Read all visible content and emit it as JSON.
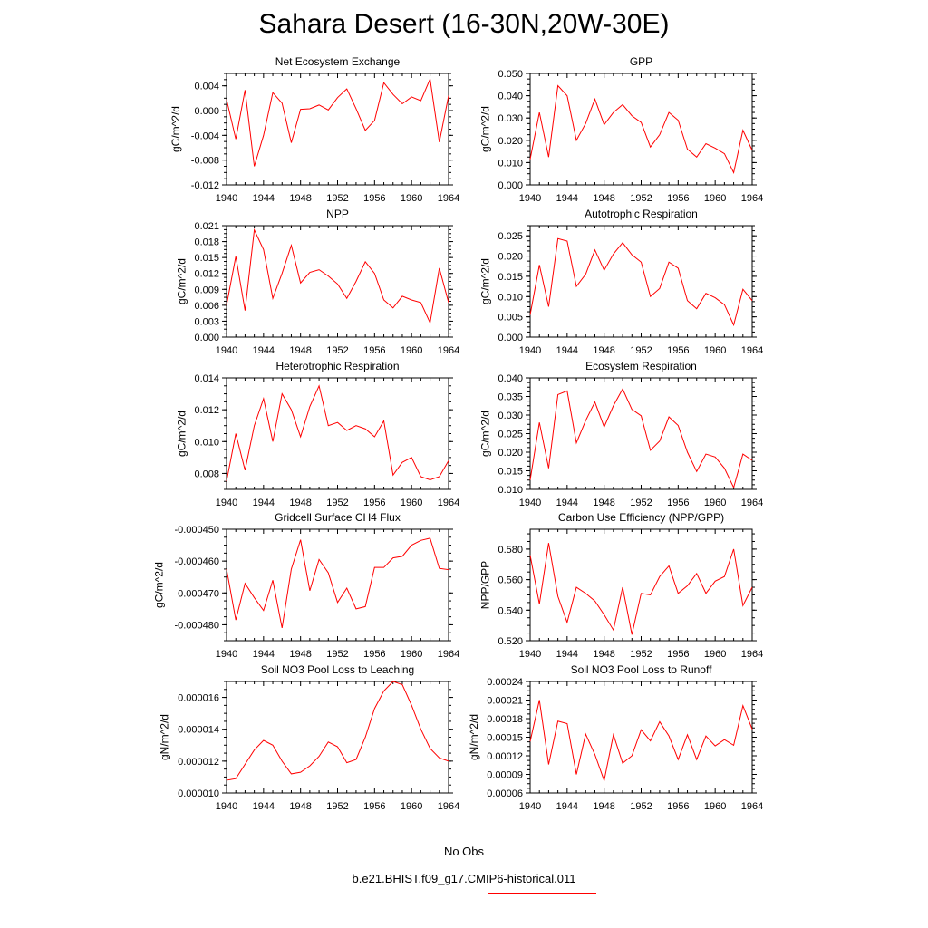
{
  "title": "Sahara Desert (16-30N,20W-30E)",
  "legend": [
    {
      "label": "No Obs",
      "color": "#0000ff",
      "dash": true
    },
    {
      "label": "b.e21.BHIST.f09_g17.CMIP6-historical.011",
      "color": "#ff0000",
      "dash": false
    }
  ],
  "chart_data": [
    {
      "type": "line",
      "title": "Net Ecosystem Exchange",
      "ylabel": "gC/m^2/d",
      "xlim": [
        1940,
        1964
      ],
      "ylim": [
        -0.012,
        0.006
      ],
      "xticks": [
        "1940",
        "1944",
        "1948",
        "1952",
        "1956",
        "1960",
        "1964"
      ],
      "yticks": [
        "-0.012",
        "-0.008",
        "-0.004",
        "0.000",
        "0.004"
      ],
      "series": [
        {
          "x": [
            1940,
            1941,
            1942,
            1943,
            1944,
            1945,
            1946,
            1947,
            1948,
            1949,
            1950,
            1951,
            1952,
            1953,
            1954,
            1955,
            1956,
            1957,
            1958,
            1959,
            1960,
            1961,
            1962,
            1963,
            1964
          ],
          "values": [
            0.0018,
            -0.0046,
            0.0033,
            -0.009,
            -0.004,
            0.0029,
            0.0012,
            -0.0052,
            0.0002,
            0.0003,
            0.0009,
            0.0001,
            0.0021,
            0.0035,
            0.0003,
            -0.0032,
            -0.0016,
            0.0045,
            0.0026,
            0.0011,
            0.0022,
            0.0016,
            0.0051,
            -0.0051,
            0.0024
          ],
          "color": "#ff0000"
        }
      ]
    },
    {
      "type": "line",
      "title": "GPP",
      "ylabel": "gC/m^2/d",
      "xlim": [
        1940,
        1964
      ],
      "ylim": [
        0,
        0.05
      ],
      "xticks": [
        "1940",
        "1944",
        "1948",
        "1952",
        "1956",
        "1960",
        "1964"
      ],
      "yticks": [
        "0.000",
        "0.010",
        "0.020",
        "0.030",
        "0.040",
        "0.050"
      ],
      "series": [
        {
          "x": [
            1940,
            1941,
            1942,
            1943,
            1944,
            1945,
            1946,
            1947,
            1948,
            1949,
            1950,
            1951,
            1952,
            1953,
            1954,
            1955,
            1956,
            1957,
            1958,
            1959,
            1960,
            1961,
            1962,
            1963,
            1964
          ],
          "values": [
            0.0115,
            0.0325,
            0.0125,
            0.0445,
            0.04,
            0.02,
            0.0275,
            0.0385,
            0.027,
            0.0325,
            0.036,
            0.031,
            0.028,
            0.017,
            0.0225,
            0.0325,
            0.029,
            0.016,
            0.0125,
            0.0185,
            0.0165,
            0.014,
            0.0055,
            0.0245,
            0.0155
          ],
          "color": "#ff0000"
        }
      ]
    },
    {
      "type": "line",
      "title": "NPP",
      "ylabel": "gC/m^2/d",
      "xlim": [
        1940,
        1964
      ],
      "ylim": [
        0,
        0.021
      ],
      "xticks": [
        "1940",
        "1944",
        "1948",
        "1952",
        "1956",
        "1960",
        "1964"
      ],
      "yticks": [
        "0.000",
        "0.003",
        "0.006",
        "0.009",
        "0.012",
        "0.015",
        "0.018",
        "0.021"
      ],
      "series": [
        {
          "x": [
            1940,
            1941,
            1942,
            1943,
            1944,
            1945,
            1946,
            1947,
            1948,
            1949,
            1950,
            1951,
            1952,
            1953,
            1954,
            1955,
            1956,
            1957,
            1958,
            1959,
            1960,
            1961,
            1962,
            1963,
            1964
          ],
          "values": [
            0.006,
            0.0152,
            0.005,
            0.0202,
            0.0165,
            0.0073,
            0.012,
            0.0173,
            0.0102,
            0.0122,
            0.0127,
            0.0115,
            0.01,
            0.0073,
            0.0105,
            0.0142,
            0.012,
            0.007,
            0.0055,
            0.0077,
            0.007,
            0.0065,
            0.0027,
            0.013,
            0.0065
          ],
          "color": "#ff0000"
        }
      ]
    },
    {
      "type": "line",
      "title": "Autotrophic Respiration",
      "ylabel": "gC/m^2/d",
      "xlim": [
        1940,
        1964
      ],
      "ylim": [
        0,
        0.0275
      ],
      "xticks": [
        "1940",
        "1944",
        "1948",
        "1952",
        "1956",
        "1960",
        "1964"
      ],
      "yticks": [
        "0.000",
        "0.005",
        "0.010",
        "0.015",
        "0.020",
        "0.025"
      ],
      "series": [
        {
          "x": [
            1940,
            1941,
            1942,
            1943,
            1944,
            1945,
            1946,
            1947,
            1948,
            1949,
            1950,
            1951,
            1952,
            1953,
            1954,
            1955,
            1956,
            1957,
            1958,
            1959,
            1960,
            1961,
            1962,
            1963,
            1964
          ],
          "values": [
            0.0055,
            0.0178,
            0.0075,
            0.0243,
            0.0237,
            0.0125,
            0.0155,
            0.0215,
            0.0165,
            0.0205,
            0.0233,
            0.0203,
            0.0185,
            0.01,
            0.012,
            0.0185,
            0.017,
            0.009,
            0.007,
            0.0108,
            0.0097,
            0.008,
            0.003,
            0.0118,
            0.009
          ],
          "color": "#ff0000"
        }
      ]
    },
    {
      "type": "line",
      "title": "Heterotrophic Respiration",
      "ylabel": "gC/m^2/d",
      "xlim": [
        1940,
        1964
      ],
      "ylim": [
        0.007,
        0.014
      ],
      "xticks": [
        "1940",
        "1944",
        "1948",
        "1952",
        "1956",
        "1960",
        "1964"
      ],
      "yticks": [
        "0.008",
        "0.010",
        "0.012",
        "0.014"
      ],
      "series": [
        {
          "x": [
            1940,
            1941,
            1942,
            1943,
            1944,
            1945,
            1946,
            1947,
            1948,
            1949,
            1950,
            1951,
            1952,
            1953,
            1954,
            1955,
            1956,
            1957,
            1958,
            1959,
            1960,
            1961,
            1962,
            1963,
            1964
          ],
          "values": [
            0.0075,
            0.0105,
            0.0082,
            0.011,
            0.0127,
            0.01,
            0.013,
            0.012,
            0.0103,
            0.0122,
            0.0135,
            0.011,
            0.0112,
            0.0107,
            0.011,
            0.0108,
            0.0103,
            0.0113,
            0.0079,
            0.0087,
            0.009,
            0.0078,
            0.0076,
            0.0078,
            0.0088
          ],
          "color": "#ff0000"
        }
      ]
    },
    {
      "type": "line",
      "title": "Ecosystem Respiration",
      "ylabel": "gC/m^2/d",
      "xlim": [
        1940,
        1964
      ],
      "ylim": [
        0.01,
        0.04
      ],
      "xticks": [
        "1940",
        "1944",
        "1948",
        "1952",
        "1956",
        "1960",
        "1964"
      ],
      "yticks": [
        "0.010",
        "0.015",
        "0.020",
        "0.025",
        "0.030",
        "0.035",
        "0.040"
      ],
      "series": [
        {
          "x": [
            1940,
            1941,
            1942,
            1943,
            1944,
            1945,
            1946,
            1947,
            1948,
            1949,
            1950,
            1951,
            1952,
            1953,
            1954,
            1955,
            1956,
            1957,
            1958,
            1959,
            1960,
            1961,
            1962,
            1963,
            1964
          ],
          "values": [
            0.0125,
            0.028,
            0.0157,
            0.0355,
            0.0365,
            0.0225,
            0.0285,
            0.0335,
            0.0268,
            0.0325,
            0.037,
            0.0315,
            0.0298,
            0.0205,
            0.023,
            0.0295,
            0.0272,
            0.02,
            0.0148,
            0.0195,
            0.0187,
            0.0157,
            0.0105,
            0.0195,
            0.0178
          ],
          "color": "#ff0000"
        }
      ]
    },
    {
      "type": "line",
      "title": "Gridcell Surface CH4 Flux",
      "ylabel": "gC/m^2/d",
      "xlim": [
        1940,
        1964
      ],
      "ylim": [
        -0.000485,
        -0.00045
      ],
      "xticks": [
        "1940",
        "1944",
        "1948",
        "1952",
        "1956",
        "1960",
        "1964"
      ],
      "yticks": [
        "-0.000480",
        "-0.000470",
        "-0.000460",
        "-0.000450"
      ],
      "series": [
        {
          "x": [
            1940,
            1941,
            1942,
            1943,
            1944,
            1945,
            1946,
            1947,
            1948,
            1949,
            1950,
            1951,
            1952,
            1953,
            1954,
            1955,
            1956,
            1957,
            1958,
            1959,
            1960,
            1961,
            1962,
            1963,
            1964
          ],
          "values": [
            -0.0004625,
            -0.0004785,
            -0.000467,
            -0.0004715,
            -0.0004755,
            -0.000466,
            -0.000481,
            -0.0004625,
            -0.0004533,
            -0.0004693,
            -0.0004595,
            -0.0004637,
            -0.000473,
            -0.0004685,
            -0.000475,
            -0.0004743,
            -0.000462,
            -0.000462,
            -0.000459,
            -0.0004585,
            -0.000455,
            -0.0004535,
            -0.0004528,
            -0.0004623,
            -0.0004627
          ],
          "color": "#ff0000"
        }
      ]
    },
    {
      "type": "line",
      "title": "Carbon Use Efficiency (NPP/GPP)",
      "ylabel": "NPP/GPP",
      "xlim": [
        1940,
        1964
      ],
      "ylim": [
        0.52,
        0.593
      ],
      "xticks": [
        "1940",
        "1944",
        "1948",
        "1952",
        "1956",
        "1960",
        "1964"
      ],
      "yticks": [
        "0.520",
        "0.540",
        "0.560",
        "0.580"
      ],
      "series": [
        {
          "x": [
            1940,
            1941,
            1942,
            1943,
            1944,
            1945,
            1946,
            1947,
            1948,
            1949,
            1950,
            1951,
            1952,
            1953,
            1954,
            1955,
            1956,
            1957,
            1958,
            1959,
            1960,
            1961,
            1962,
            1963,
            1964
          ],
          "values": [
            0.576,
            0.544,
            0.584,
            0.549,
            0.532,
            0.555,
            0.551,
            0.546,
            0.537,
            0.527,
            0.555,
            0.524,
            0.551,
            0.55,
            0.562,
            0.569,
            0.551,
            0.556,
            0.564,
            0.551,
            0.559,
            0.562,
            0.58,
            0.543,
            0.555
          ],
          "color": "#ff0000"
        }
      ]
    },
    {
      "type": "line",
      "title": "Soil NO3 Pool Loss to Leaching",
      "ylabel": "gN/m^2/d",
      "xlim": [
        1940,
        1964
      ],
      "ylim": [
        1e-05,
        1.7e-05
      ],
      "xticks": [
        "1940",
        "1944",
        "1948",
        "1952",
        "1956",
        "1960",
        "1964"
      ],
      "yticks": [
        "0.000010",
        "0.000012",
        "0.000014",
        "0.000016"
      ],
      "series": [
        {
          "x": [
            1940,
            1941,
            1942,
            1943,
            1944,
            1945,
            1946,
            1947,
            1948,
            1949,
            1950,
            1951,
            1952,
            1953,
            1954,
            1955,
            1956,
            1957,
            1958,
            1959,
            1960,
            1961,
            1962,
            1963,
            1964
          ],
          "values": [
            1.08e-05,
            1.09e-05,
            1.18e-05,
            1.27e-05,
            1.33e-05,
            1.3e-05,
            1.2e-05,
            1.12e-05,
            1.13e-05,
            1.17e-05,
            1.23e-05,
            1.32e-05,
            1.29e-05,
            1.19e-05,
            1.21e-05,
            1.35e-05,
            1.53e-05,
            1.64e-05,
            1.7e-05,
            1.68e-05,
            1.55e-05,
            1.4e-05,
            1.28e-05,
            1.22e-05,
            1.2e-05
          ],
          "color": "#ff0000"
        }
      ]
    },
    {
      "type": "line",
      "title": "Soil NO3 Pool Loss to Runoff",
      "ylabel": "gN/m^2/d",
      "xlim": [
        1940,
        1964
      ],
      "ylim": [
        6e-05,
        0.00024
      ],
      "xticks": [
        "1940",
        "1944",
        "1948",
        "1952",
        "1956",
        "1960",
        "1964"
      ],
      "yticks": [
        "0.00006",
        "0.00009",
        "0.00012",
        "0.00015",
        "0.00018",
        "0.00021",
        "0.00024"
      ],
      "series": [
        {
          "x": [
            1940,
            1941,
            1942,
            1943,
            1944,
            1945,
            1946,
            1947,
            1948,
            1949,
            1950,
            1951,
            1952,
            1953,
            1954,
            1955,
            1956,
            1957,
            1958,
            1959,
            1960,
            1961,
            1962,
            1963,
            1964
          ],
          "values": [
            0.000143,
            0.00021,
            0.000106,
            0.000176,
            0.000172,
            9e-05,
            0.000155,
            0.000122,
            8e-05,
            0.000154,
            0.000108,
            0.00012,
            0.000162,
            0.000144,
            0.000175,
            0.000152,
            0.000114,
            0.000154,
            0.000114,
            0.000152,
            0.000136,
            0.000146,
            0.000137,
            0.000201,
            0.000163
          ],
          "color": "#ff0000"
        }
      ]
    }
  ]
}
